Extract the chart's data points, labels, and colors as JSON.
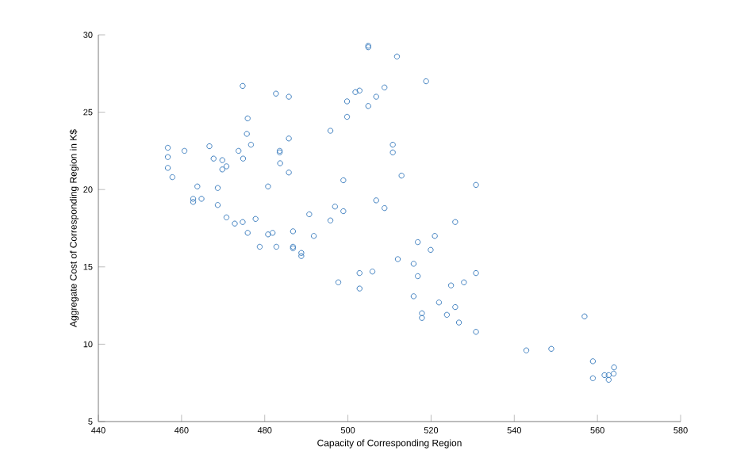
{
  "chart_data": {
    "type": "scatter",
    "xlabel": "Capacity of Corresponding Region",
    "ylabel": "Aggregate Cost of Corresponding Region in K$",
    "xlim": [
      440,
      580
    ],
    "ylim": [
      5,
      30
    ],
    "xticks": [
      440,
      460,
      480,
      500,
      520,
      540,
      560,
      580
    ],
    "yticks": [
      5,
      10,
      15,
      20,
      25,
      30
    ],
    "marker": "circle",
    "series": [
      {
        "color": "#3f7fbf",
        "x": [
          474.7,
          482.7,
          485.8,
          475.9,
          475.7,
          476.7,
          485.8,
          456.7,
          460.7,
          466.7,
          473.7,
          474.8,
          483.6,
          483.6,
          456.7,
          456.7,
          457.8,
          467.7,
          469.8,
          470.8,
          469.8,
          483.7,
          485.8,
          480.8,
          498.9,
          463.8,
          468.7,
          462.8,
          462.8,
          464.8,
          468.7,
          470.8,
          472.8,
          474.7,
          477.8,
          475.9,
          480.8,
          481.9,
          486.8,
          491.8,
          490.7,
          495.8,
          496.9,
          498.9,
          495.8,
          478.8,
          482.8,
          486.8,
          486.8,
          488.8,
          488.8,
          497.7,
          504.9,
          504.9,
          511.8,
          518.8,
          502.8,
          501.8,
          508.8,
          506.8,
          499.8,
          504.9,
          499.8,
          510.8,
          510.8,
          512.9,
          530.8,
          506.8,
          508.8,
          525.8,
          520.9,
          516.8,
          519.9,
          512.0,
          515.8,
          516.8,
          502.8,
          505.9,
          502.8,
          530.8,
          527.9,
          524.8,
          515.8,
          521.9,
          525.8,
          517.8,
          517.8,
          523.8,
          526.7,
          530.8,
          556.9,
          542.9,
          548.9,
          558.9,
          558.9,
          561.7,
          562.7,
          564.0,
          563.9,
          562.7
        ],
        "values": [
          26.7,
          26.2,
          26.0,
          24.6,
          23.6,
          22.9,
          23.3,
          22.7,
          22.5,
          22.8,
          22.5,
          22.0,
          22.5,
          22.4,
          22.1,
          21.4,
          20.8,
          22.0,
          21.9,
          21.5,
          21.3,
          21.7,
          21.1,
          20.2,
          20.6,
          20.2,
          20.1,
          19.4,
          19.2,
          19.4,
          19.0,
          18.2,
          17.8,
          17.9,
          18.1,
          17.2,
          17.1,
          17.2,
          17.3,
          17.0,
          18.4,
          18.0,
          18.9,
          18.6,
          23.8,
          16.3,
          16.3,
          16.3,
          16.2,
          15.9,
          15.7,
          14.0,
          29.3,
          29.2,
          28.6,
          27.0,
          26.4,
          26.3,
          26.6,
          26.0,
          25.7,
          25.4,
          24.7,
          22.9,
          22.4,
          20.9,
          20.3,
          19.3,
          18.8,
          17.9,
          17.0,
          16.6,
          16.1,
          15.5,
          15.2,
          14.4,
          14.6,
          14.7,
          13.6,
          14.6,
          14.0,
          13.8,
          13.1,
          12.7,
          12.4,
          12.0,
          11.7,
          11.9,
          11.4,
          10.8,
          11.8,
          9.6,
          9.7,
          8.9,
          7.8,
          8.0,
          8.0,
          8.5,
          8.1,
          7.7
        ]
      }
    ]
  }
}
